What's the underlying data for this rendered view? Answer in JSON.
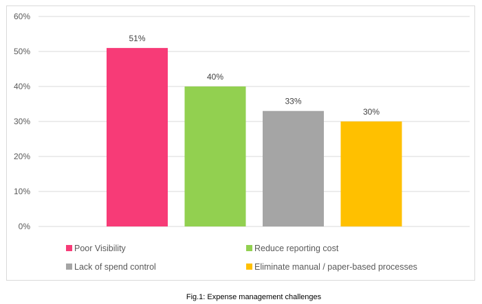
{
  "chart_data": {
    "type": "bar",
    "categories": [
      "Poor Visibility",
      "Reduce reporting cost",
      "Lack of spend control",
      "Eliminate manual / paper-based processes"
    ],
    "values": [
      51,
      40,
      33,
      30
    ],
    "data_labels": [
      "51%",
      "40%",
      "33%",
      "30%"
    ],
    "colors": [
      "#f73b77",
      "#92d050",
      "#a5a5a5",
      "#ffc000"
    ],
    "ylim": [
      0,
      60
    ],
    "yticks": [
      0,
      10,
      20,
      30,
      40,
      50,
      60
    ],
    "ytick_labels": [
      "0%",
      "10%",
      "20%",
      "30%",
      "40%",
      "50%",
      "60%"
    ],
    "grid": true,
    "legend_position": "bottom",
    "caption": "Fig.1: Expense management challenges"
  }
}
